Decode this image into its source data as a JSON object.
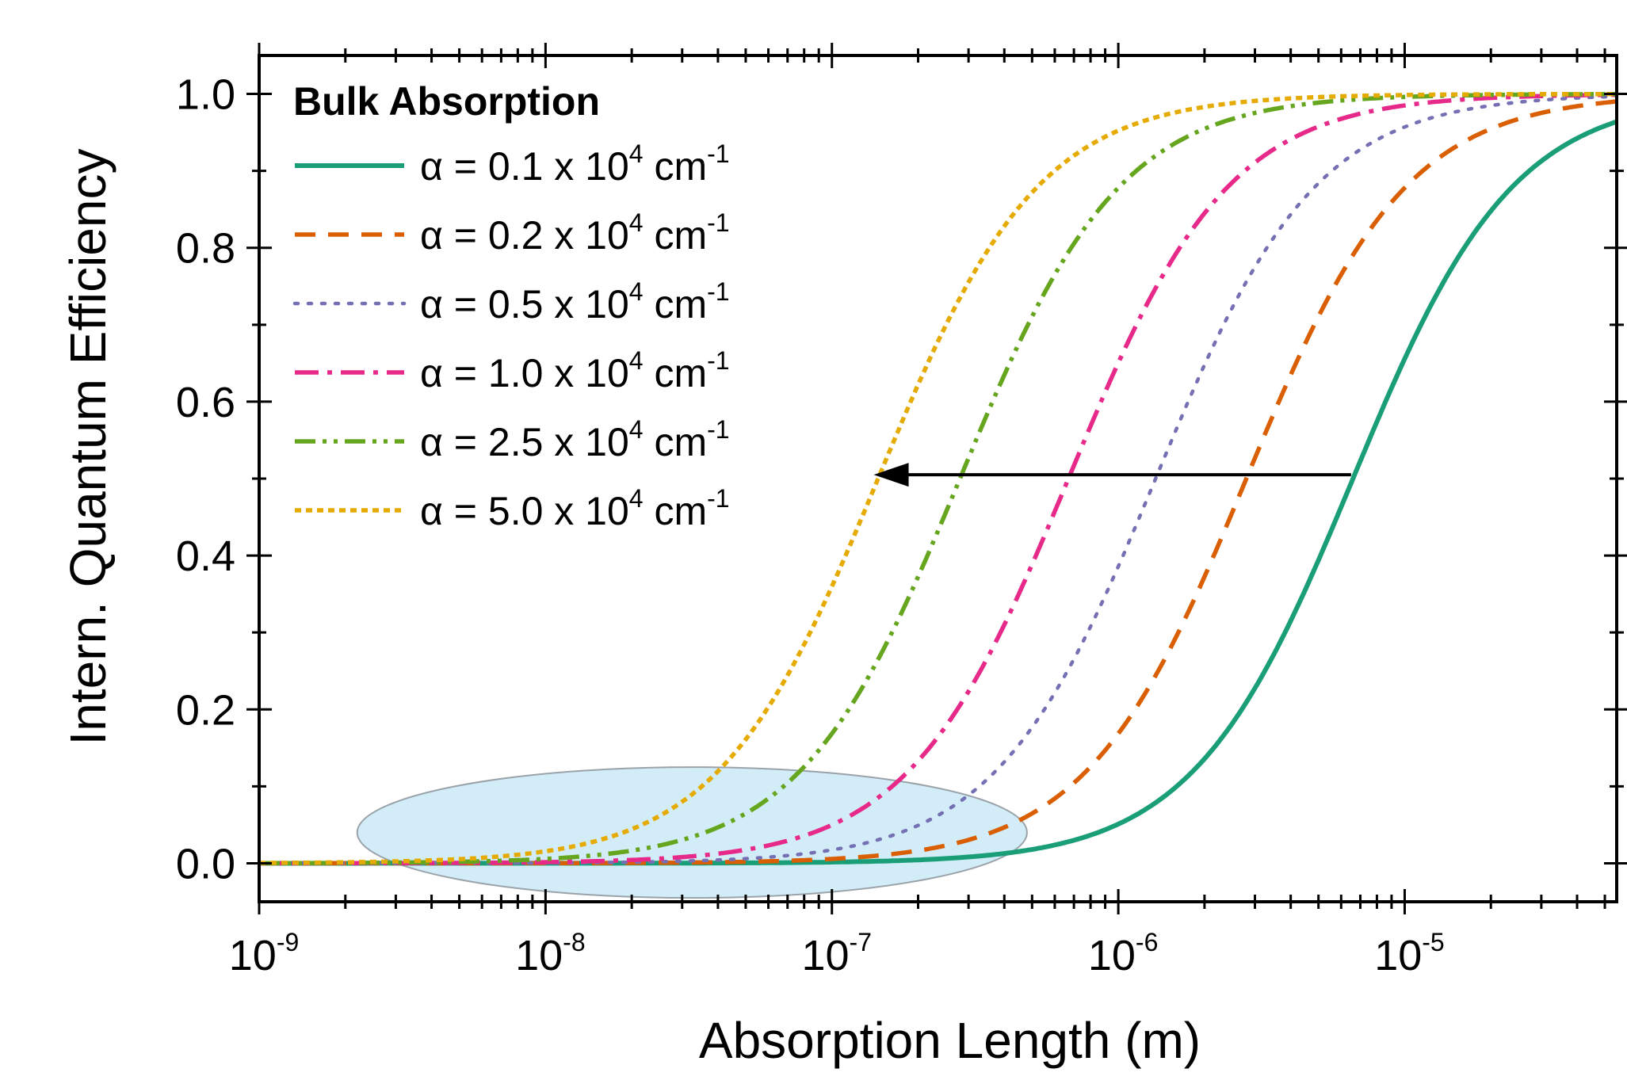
{
  "chart_data": {
    "type": "line",
    "title": "",
    "xlabel": "Absorption Length (m)",
    "ylabel": "Intern. Quantum Efficiency",
    "xscale": "log",
    "xlim": [
      1e-09,
      5.5e-05
    ],
    "ylim": [
      -0.05,
      1.05
    ],
    "x_ticks": [
      {
        "value": 1e-09,
        "base": "10",
        "exp": "-9"
      },
      {
        "value": 1e-08,
        "base": "10",
        "exp": "-8"
      },
      {
        "value": 1e-07,
        "base": "10",
        "exp": "-7"
      },
      {
        "value": 1e-06,
        "base": "10",
        "exp": "-6"
      },
      {
        "value": 1e-05,
        "base": "10",
        "exp": "-5"
      }
    ],
    "y_ticks": [
      {
        "value": 0.0,
        "label": "0.0"
      },
      {
        "value": 0.2,
        "label": "0.2"
      },
      {
        "value": 0.4,
        "label": "0.4"
      },
      {
        "value": 0.6,
        "label": "0.6"
      },
      {
        "value": 0.8,
        "label": "0.8"
      },
      {
        "value": 1.0,
        "label": "1.0"
      }
    ],
    "legend": {
      "title": "Bulk Absorption",
      "position": "top-left"
    },
    "series": [
      {
        "name": "0.1",
        "alpha_prefix": "α = ",
        "alpha_value": "0.1 x 10",
        "alpha_exp": "4",
        "unit": " cm",
        "unit_exp": "-1",
        "color": "#1a9e77",
        "dash": "solid",
        "midpoint": 6.6e-06
      },
      {
        "name": "0.2",
        "alpha_prefix": "α = ",
        "alpha_value": "0.2 x 10",
        "alpha_exp": "4",
        "unit": " cm",
        "unit_exp": "-1",
        "color": "#d95f02",
        "dash": "dash",
        "midpoint": 2.8e-06
      },
      {
        "name": "0.5",
        "alpha_prefix": "α = ",
        "alpha_value": "0.5 x 10",
        "alpha_exp": "4",
        "unit": " cm",
        "unit_exp": "-1",
        "color": "#7570b3",
        "dash": "dot",
        "midpoint": 1.35e-06
      },
      {
        "name": "1.0",
        "alpha_prefix": "α = ",
        "alpha_value": "1.0 x 10",
        "alpha_exp": "4",
        "unit": " cm",
        "unit_exp": "-1",
        "color": "#e7298a",
        "dash": "dashdot",
        "midpoint": 6.7e-07
      },
      {
        "name": "2.5",
        "alpha_prefix": "α = ",
        "alpha_value": "2.5 x 10",
        "alpha_exp": "4",
        "unit": " cm",
        "unit_exp": "-1",
        "color": "#66a61e",
        "dash": "dashdotdot",
        "midpoint": 2.8e-07
      },
      {
        "name": "5.0",
        "alpha_prefix": "α = ",
        "alpha_value": "5.0 x 10",
        "alpha_exp": "4",
        "unit": " cm",
        "unit_exp": "-1",
        "color": "#e6ab02",
        "dash": "shortdot",
        "midpoint": 1.45e-07
      }
    ],
    "annotations": [
      {
        "type": "arrow",
        "from": [
          6.5e-06,
          0.505
        ],
        "to": [
          1.4e-07,
          0.505
        ],
        "color": "#000000"
      },
      {
        "type": "ellipse",
        "center": [
          4.5e-08,
          0.04
        ],
        "x_extent": [
          2.2e-09,
          4.8e-07
        ],
        "y_extent": [
          -0.045,
          0.125
        ],
        "fill": "#d3edf8",
        "stroke": "#9aa3aa"
      }
    ]
  }
}
